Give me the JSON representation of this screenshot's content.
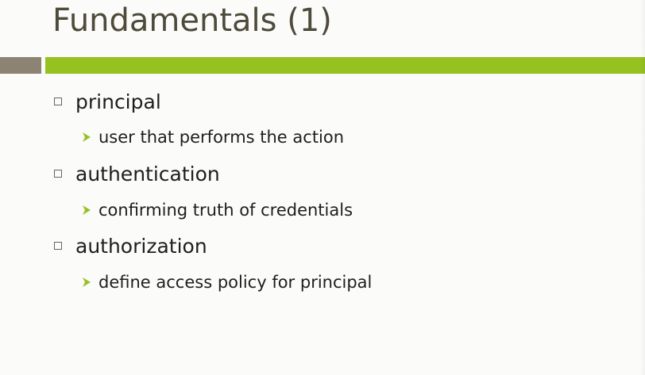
{
  "slide": {
    "title": "Fundamentals (1)",
    "colors": {
      "title_text": "#4e4b3a",
      "rule_grey": "#8c8373",
      "rule_green": "#96c11f",
      "arrow_bullet": "#96c11f",
      "body_text": "#1e1e1e",
      "background": "#fbfbfa"
    },
    "bullets": [
      {
        "term": "principal",
        "definition": "user that performs the action",
        "bullet_icon": "square-bullet-icon",
        "sub_bullet_icon": "arrow-bullet-icon"
      },
      {
        "term": "authentication",
        "definition": "confirming truth of credentials",
        "bullet_icon": "square-bullet-icon",
        "sub_bullet_icon": "arrow-bullet-icon"
      },
      {
        "term": "authorization",
        "definition": "define access policy for principal",
        "bullet_icon": "square-bullet-icon",
        "sub_bullet_icon": "arrow-bullet-icon"
      }
    ]
  }
}
